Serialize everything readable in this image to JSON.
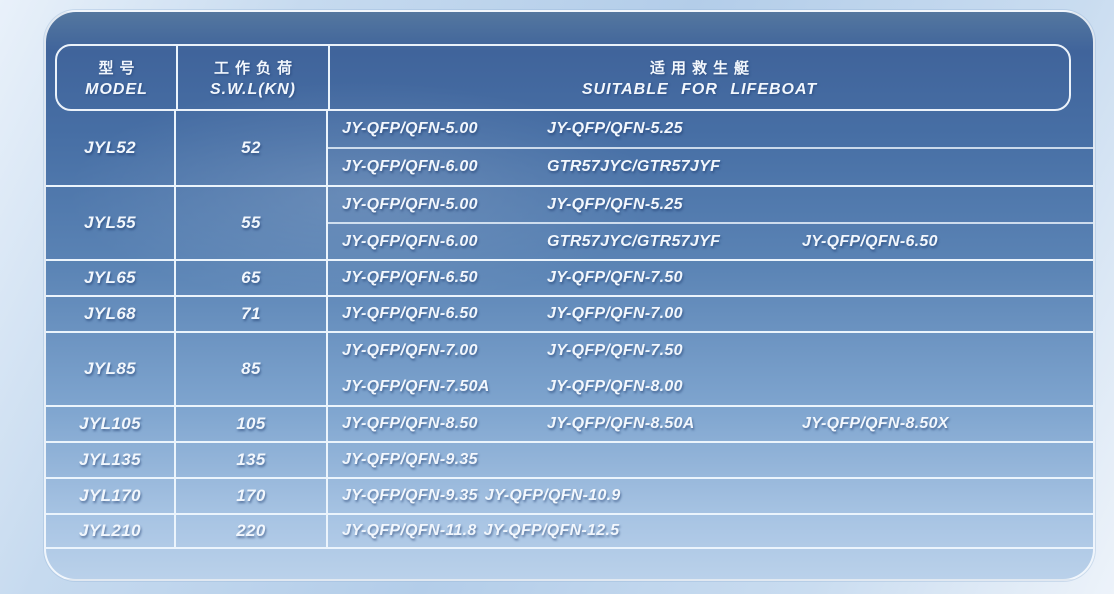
{
  "palette": {
    "table_top_blue": "#40649b",
    "table_bottom_blue": "#bad1ea",
    "grid_line": "#ebf4fc",
    "text": "#f2f7fd",
    "page_background": "#b3cde9"
  },
  "header": {
    "model": {
      "zh": "型号",
      "en": "MODEL"
    },
    "swl": {
      "zh": "工作负荷",
      "en": "S.W.L(KN)"
    },
    "boat": {
      "zh": "适用救生艇",
      "en": "SUITABLE FOR LIFEBOAT"
    }
  },
  "table": {
    "rows": [
      {
        "model": "JYL52",
        "swl": "52",
        "sub_separator": true,
        "lines": [
          [
            "JY-QFP/QFN-5.00",
            "JY-QFP/QFN-5.25"
          ],
          [
            "JY-QFP/QFN-6.00",
            "GTR57JYC/GTR57JYF"
          ]
        ]
      },
      {
        "model": "JYL55",
        "swl": "55",
        "sub_separator": true,
        "lines": [
          [
            "JY-QFP/QFN-5.00",
            "JY-QFP/QFN-5.25"
          ],
          [
            "JY-QFP/QFN-6.00",
            "GTR57JYC/GTR57JYF",
            "JY-QFP/QFN-6.50"
          ]
        ]
      },
      {
        "model": "JYL65",
        "swl": "65",
        "lines": [
          [
            "JY-QFP/QFN-6.50",
            "JY-QFP/QFN-7.50"
          ]
        ]
      },
      {
        "model": "JYL68",
        "swl": "71",
        "lines": [
          [
            "JY-QFP/QFN-6.50",
            "JY-QFP/QFN-7.00"
          ]
        ]
      },
      {
        "model": "JYL85",
        "swl": "85",
        "sub_separator": false,
        "lines": [
          [
            "JY-QFP/QFN-7.00",
            "JY-QFP/QFN-7.50"
          ],
          [
            "JY-QFP/QFN-7.50A",
            "JY-QFP/QFN-8.00"
          ]
        ]
      },
      {
        "model": "JYL105",
        "swl": "105",
        "lines": [
          [
            "JY-QFP/QFN-8.50",
            "JY-QFP/QFN-8.50A",
            "JY-QFP/QFN-8.50X"
          ]
        ]
      },
      {
        "model": "JYL135",
        "swl": "135",
        "lines": [
          [
            "JY-QFP/QFN-9.35"
          ]
        ]
      },
      {
        "model": "JYL170",
        "swl": "170",
        "tight": true,
        "lines": [
          [
            "JY-QFP/QFN-9.35",
            "JY-QFP/QFN-10.9"
          ]
        ]
      },
      {
        "model": "JYL210",
        "swl": "220",
        "tight": true,
        "lines": [
          [
            "JY-QFP/QFN-11.8",
            "JY-QFP/QFN-12.5"
          ]
        ]
      }
    ]
  }
}
